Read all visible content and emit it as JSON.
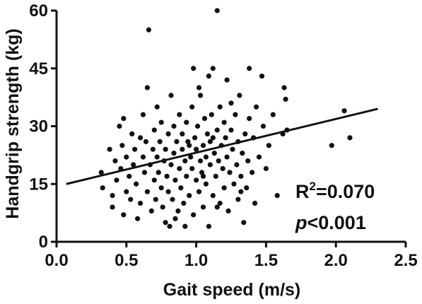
{
  "chart_data": {
    "type": "scatter",
    "title": "",
    "xlabel": "Gait speed  (m/s)",
    "ylabel": "Handgrip strength  (kg)",
    "xlim": [
      0,
      2.5
    ],
    "ylim": [
      0,
      60
    ],
    "xticks": [
      "0.0",
      "0.5",
      "1.0",
      "1.5",
      "2.0",
      "2.5"
    ],
    "yticks": [
      "0",
      "15",
      "30",
      "45",
      "60"
    ],
    "grid": false,
    "annotation": {
      "r2_prefix": "R",
      "r2_sup": "2",
      "r2_value": "=0.070",
      "p_symbol": "p",
      "p_value": "<0.001"
    },
    "regression_line": {
      "x": [
        0.07,
        2.3
      ],
      "y": [
        15.0,
        34.5
      ]
    },
    "points": [
      [
        0.32,
        18
      ],
      [
        0.33,
        14
      ],
      [
        0.38,
        24
      ],
      [
        0.4,
        12
      ],
      [
        0.4,
        9
      ],
      [
        0.42,
        21
      ],
      [
        0.43,
        16
      ],
      [
        0.45,
        30
      ],
      [
        0.46,
        19
      ],
      [
        0.47,
        25
      ],
      [
        0.48,
        32
      ],
      [
        0.48,
        7
      ],
      [
        0.5,
        13
      ],
      [
        0.5,
        22
      ],
      [
        0.52,
        17
      ],
      [
        0.53,
        11
      ],
      [
        0.54,
        28
      ],
      [
        0.55,
        20
      ],
      [
        0.56,
        24
      ],
      [
        0.57,
        15
      ],
      [
        0.58,
        6
      ],
      [
        0.6,
        27
      ],
      [
        0.6,
        10
      ],
      [
        0.62,
        22
      ],
      [
        0.62,
        33
      ],
      [
        0.63,
        18
      ],
      [
        0.64,
        26
      ],
      [
        0.65,
        13
      ],
      [
        0.65,
        40
      ],
      [
        0.66,
        55
      ],
      [
        0.67,
        20
      ],
      [
        0.68,
        8
      ],
      [
        0.69,
        24
      ],
      [
        0.7,
        16
      ],
      [
        0.7,
        29
      ],
      [
        0.71,
        11
      ],
      [
        0.72,
        22
      ],
      [
        0.73,
        18
      ],
      [
        0.74,
        26
      ],
      [
        0.75,
        14
      ],
      [
        0.75,
        31
      ],
      [
        0.76,
        9
      ],
      [
        0.77,
        21
      ],
      [
        0.78,
        5
      ],
      [
        0.78,
        24
      ],
      [
        0.79,
        17
      ],
      [
        0.8,
        28
      ],
      [
        0.8,
        13
      ],
      [
        0.81,
        4
      ],
      [
        0.82,
        38
      ],
      [
        0.82,
        20
      ],
      [
        0.83,
        11
      ],
      [
        0.84,
        30
      ],
      [
        0.84,
        23
      ],
      [
        0.85,
        16
      ],
      [
        0.86,
        26
      ],
      [
        0.87,
        8
      ],
      [
        0.88,
        33
      ],
      [
        0.88,
        19
      ],
      [
        0.89,
        14
      ],
      [
        0.9,
        24
      ],
      [
        0.9,
        28
      ],
      [
        0.91,
        10
      ],
      [
        0.92,
        21
      ],
      [
        0.93,
        31
      ],
      [
        0.93,
        17
      ],
      [
        0.94,
        26
      ],
      [
        0.95,
        12
      ],
      [
        0.96,
        22
      ],
      [
        0.97,
        35
      ],
      [
        0.97,
        19
      ],
      [
        0.98,
        7
      ],
      [
        0.98,
        45
      ],
      [
        0.99,
        27
      ],
      [
        1.0,
        16
      ],
      [
        1.0,
        24
      ],
      [
        1.01,
        30
      ],
      [
        1.02,
        13
      ],
      [
        1.03,
        21
      ],
      [
        1.03,
        38
      ],
      [
        1.04,
        18
      ],
      [
        1.05,
        25
      ],
      [
        1.05,
        9
      ],
      [
        1.06,
        32
      ],
      [
        1.07,
        22
      ],
      [
        1.07,
        15
      ],
      [
        1.08,
        28
      ],
      [
        1.09,
        4
      ],
      [
        1.09,
        43
      ],
      [
        1.1,
        20
      ],
      [
        1.1,
        26
      ],
      [
        1.11,
        33
      ],
      [
        1.12,
        12
      ],
      [
        1.12,
        45
      ],
      [
        1.13,
        23
      ],
      [
        1.14,
        17
      ],
      [
        1.15,
        29
      ],
      [
        1.15,
        60
      ],
      [
        1.16,
        21
      ],
      [
        1.17,
        10
      ],
      [
        1.17,
        35
      ],
      [
        1.18,
        25
      ],
      [
        1.19,
        19
      ],
      [
        1.2,
        31
      ],
      [
        1.2,
        14
      ],
      [
        1.21,
        27
      ],
      [
        1.22,
        42
      ],
      [
        1.22,
        22
      ],
      [
        1.23,
        8
      ],
      [
        1.24,
        18
      ],
      [
        1.25,
        29
      ],
      [
        1.26,
        24
      ],
      [
        1.27,
        15
      ],
      [
        1.28,
        33
      ],
      [
        1.29,
        20
      ],
      [
        1.3,
        11
      ],
      [
        1.3,
        26
      ],
      [
        1.31,
        38
      ],
      [
        1.32,
        17
      ],
      [
        1.33,
        23
      ],
      [
        1.34,
        5
      ],
      [
        1.35,
        28
      ],
      [
        1.36,
        14
      ],
      [
        1.37,
        21
      ],
      [
        1.38,
        32
      ],
      [
        1.38,
        45
      ],
      [
        1.4,
        18
      ],
      [
        1.41,
        27
      ],
      [
        1.42,
        10
      ],
      [
        1.43,
        35
      ],
      [
        1.45,
        22
      ],
      [
        1.47,
        43
      ],
      [
        1.48,
        30
      ],
      [
        1.5,
        19
      ],
      [
        1.52,
        25
      ],
      [
        1.55,
        33
      ],
      [
        1.58,
        12
      ],
      [
        1.62,
        28
      ],
      [
        1.63,
        40
      ],
      [
        1.64,
        37
      ],
      [
        1.65,
        29
      ],
      [
        1.97,
        25
      ],
      [
        2.06,
        34
      ],
      [
        2.1,
        27
      ],
      [
        0.85,
        6
      ],
      [
        0.95,
        25
      ],
      [
        1.05,
        17
      ],
      [
        1.15,
        9
      ],
      [
        1.25,
        36
      ],
      [
        0.72,
        35
      ],
      [
        0.92,
        4
      ],
      [
        1.02,
        40
      ],
      [
        1.12,
        27
      ],
      [
        1.32,
        13
      ]
    ]
  }
}
